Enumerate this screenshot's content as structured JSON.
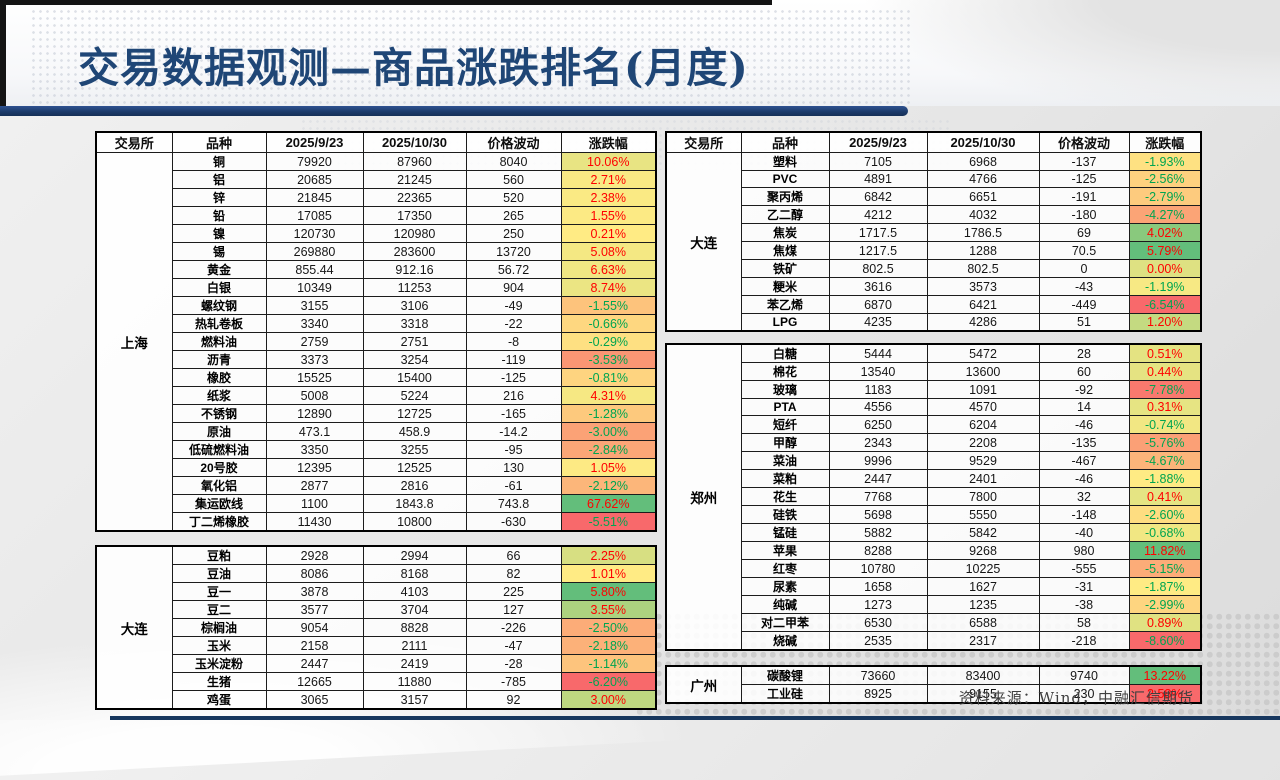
{
  "title": "交易数据观测—商品涨跌排名(月度)",
  "source_note": "资料来源：Wind，中融汇信期货",
  "columns": [
    "交易所",
    "品种",
    "2025/9/23",
    "2025/10/30",
    "价格波动",
    "涨跌幅"
  ],
  "colors": {
    "title_blue": "#1f4676",
    "accent_navy": "#17375E",
    "scale_min_red": "#F8696B",
    "scale_mid_yellow": "#FFEB84",
    "scale_max_green": "#63BE7B",
    "positive_text": "#FF0000",
    "negative_text": "#00A550"
  },
  "left_tables": [
    {
      "exchange": "上海",
      "rows": [
        [
          "铜",
          "79920",
          "87960",
          "8040",
          "10.06%"
        ],
        [
          "铝",
          "20685",
          "21245",
          "560",
          "2.71%"
        ],
        [
          "锌",
          "21845",
          "22365",
          "520",
          "2.38%"
        ],
        [
          "铅",
          "17085",
          "17350",
          "265",
          "1.55%"
        ],
        [
          "镍",
          "120730",
          "120980",
          "250",
          "0.21%"
        ],
        [
          "锡",
          "269880",
          "283600",
          "13720",
          "5.08%"
        ],
        [
          "黄金",
          "855.44",
          "912.16",
          "56.72",
          "6.63%"
        ],
        [
          "白银",
          "10349",
          "11253",
          "904",
          "8.74%"
        ],
        [
          "螺纹钢",
          "3155",
          "3106",
          "-49",
          "-1.55%"
        ],
        [
          "热轧卷板",
          "3340",
          "3318",
          "-22",
          "-0.66%"
        ],
        [
          "燃料油",
          "2759",
          "2751",
          "-8",
          "-0.29%"
        ],
        [
          "沥青",
          "3373",
          "3254",
          "-119",
          "-3.53%"
        ],
        [
          "橡胶",
          "15525",
          "15400",
          "-125",
          "-0.81%"
        ],
        [
          "纸浆",
          "5008",
          "5224",
          "216",
          "4.31%"
        ],
        [
          "不锈钢",
          "12890",
          "12725",
          "-165",
          "-1.28%"
        ],
        [
          "原油",
          "473.1",
          "458.9",
          "-14.2",
          "-3.00%"
        ],
        [
          "低硫燃料油",
          "3350",
          "3255",
          "-95",
          "-2.84%"
        ],
        [
          "20号胶",
          "12395",
          "12525",
          "130",
          "1.05%"
        ],
        [
          "氧化铝",
          "2877",
          "2816",
          "-61",
          "-2.12%"
        ],
        [
          "集运欧线",
          "1100",
          "1843.8",
          "743.8",
          "67.62%"
        ],
        [
          "丁二烯橡胶",
          "11430",
          "10800",
          "-630",
          "-5.51%"
        ]
      ]
    },
    {
      "exchange": "大连",
      "rows": [
        [
          "豆粕",
          "2928",
          "2994",
          "66",
          "2.25%"
        ],
        [
          "豆油",
          "8086",
          "8168",
          "82",
          "1.01%"
        ],
        [
          "豆一",
          "3878",
          "4103",
          "225",
          "5.80%"
        ],
        [
          "豆二",
          "3577",
          "3704",
          "127",
          "3.55%"
        ],
        [
          "棕榈油",
          "9054",
          "8828",
          "-226",
          "-2.50%"
        ],
        [
          "玉米",
          "2158",
          "2111",
          "-47",
          "-2.18%"
        ],
        [
          "玉米淀粉",
          "2447",
          "2419",
          "-28",
          "-1.14%"
        ],
        [
          "生猪",
          "12665",
          "11880",
          "-785",
          "-6.20%"
        ],
        [
          "鸡蛋",
          "3065",
          "3157",
          "92",
          "3.00%"
        ]
      ]
    }
  ],
  "right_tables": [
    {
      "exchange": "大连",
      "rows": [
        [
          "塑料",
          "7105",
          "6968",
          "-137",
          "-1.93%"
        ],
        [
          "PVC",
          "4891",
          "4766",
          "-125",
          "-2.56%"
        ],
        [
          "聚丙烯",
          "6842",
          "6651",
          "-191",
          "-2.79%"
        ],
        [
          "乙二醇",
          "4212",
          "4032",
          "-180",
          "-4.27%"
        ],
        [
          "焦炭",
          "1717.5",
          "1786.5",
          "69",
          "4.02%"
        ],
        [
          "焦煤",
          "1217.5",
          "1288",
          "70.5",
          "5.79%"
        ],
        [
          "铁矿",
          "802.5",
          "802.5",
          "0",
          "0.00%"
        ],
        [
          "粳米",
          "3616",
          "3573",
          "-43",
          "-1.19%"
        ],
        [
          "苯乙烯",
          "6870",
          "6421",
          "-449",
          "-6.54%"
        ],
        [
          "LPG",
          "4235",
          "4286",
          "51",
          "1.20%"
        ]
      ]
    },
    {
      "exchange": "郑州",
      "rows": [
        [
          "白糖",
          "5444",
          "5472",
          "28",
          "0.51%"
        ],
        [
          "棉花",
          "13540",
          "13600",
          "60",
          "0.44%"
        ],
        [
          "玻璃",
          "1183",
          "1091",
          "-92",
          "-7.78%"
        ],
        [
          "PTA",
          "4556",
          "4570",
          "14",
          "0.31%"
        ],
        [
          "短纤",
          "6250",
          "6204",
          "-46",
          "-0.74%"
        ],
        [
          "甲醇",
          "2343",
          "2208",
          "-135",
          "-5.76%"
        ],
        [
          "菜油",
          "9996",
          "9529",
          "-467",
          "-4.67%"
        ],
        [
          "菜粕",
          "2447",
          "2401",
          "-46",
          "-1.88%"
        ],
        [
          "花生",
          "7768",
          "7800",
          "32",
          "0.41%"
        ],
        [
          "硅铁",
          "5698",
          "5550",
          "-148",
          "-2.60%"
        ],
        [
          "锰硅",
          "5882",
          "5842",
          "-40",
          "-0.68%"
        ],
        [
          "苹果",
          "8288",
          "9268",
          "980",
          "11.82%"
        ],
        [
          "红枣",
          "10780",
          "10225",
          "-555",
          "-5.15%"
        ],
        [
          "尿素",
          "1658",
          "1627",
          "-31",
          "-1.87%"
        ],
        [
          "纯碱",
          "1273",
          "1235",
          "-38",
          "-2.99%"
        ],
        [
          "对二甲苯",
          "6530",
          "6588",
          "58",
          "0.89%"
        ],
        [
          "烧碱",
          "2535",
          "2317",
          "-218",
          "-8.60%"
        ]
      ]
    },
    {
      "exchange": "广州",
      "rows": [
        [
          "碳酸锂",
          "73660",
          "83400",
          "9740",
          "13.22%"
        ],
        [
          "工业硅",
          "8925",
          "9155",
          "230",
          "2.58%"
        ]
      ]
    }
  ],
  "layout": {
    "left_col_widths": [
      76,
      94,
      97,
      103,
      95,
      95
    ],
    "right_col_widths": [
      75,
      88,
      98,
      112,
      90,
      72
    ]
  }
}
